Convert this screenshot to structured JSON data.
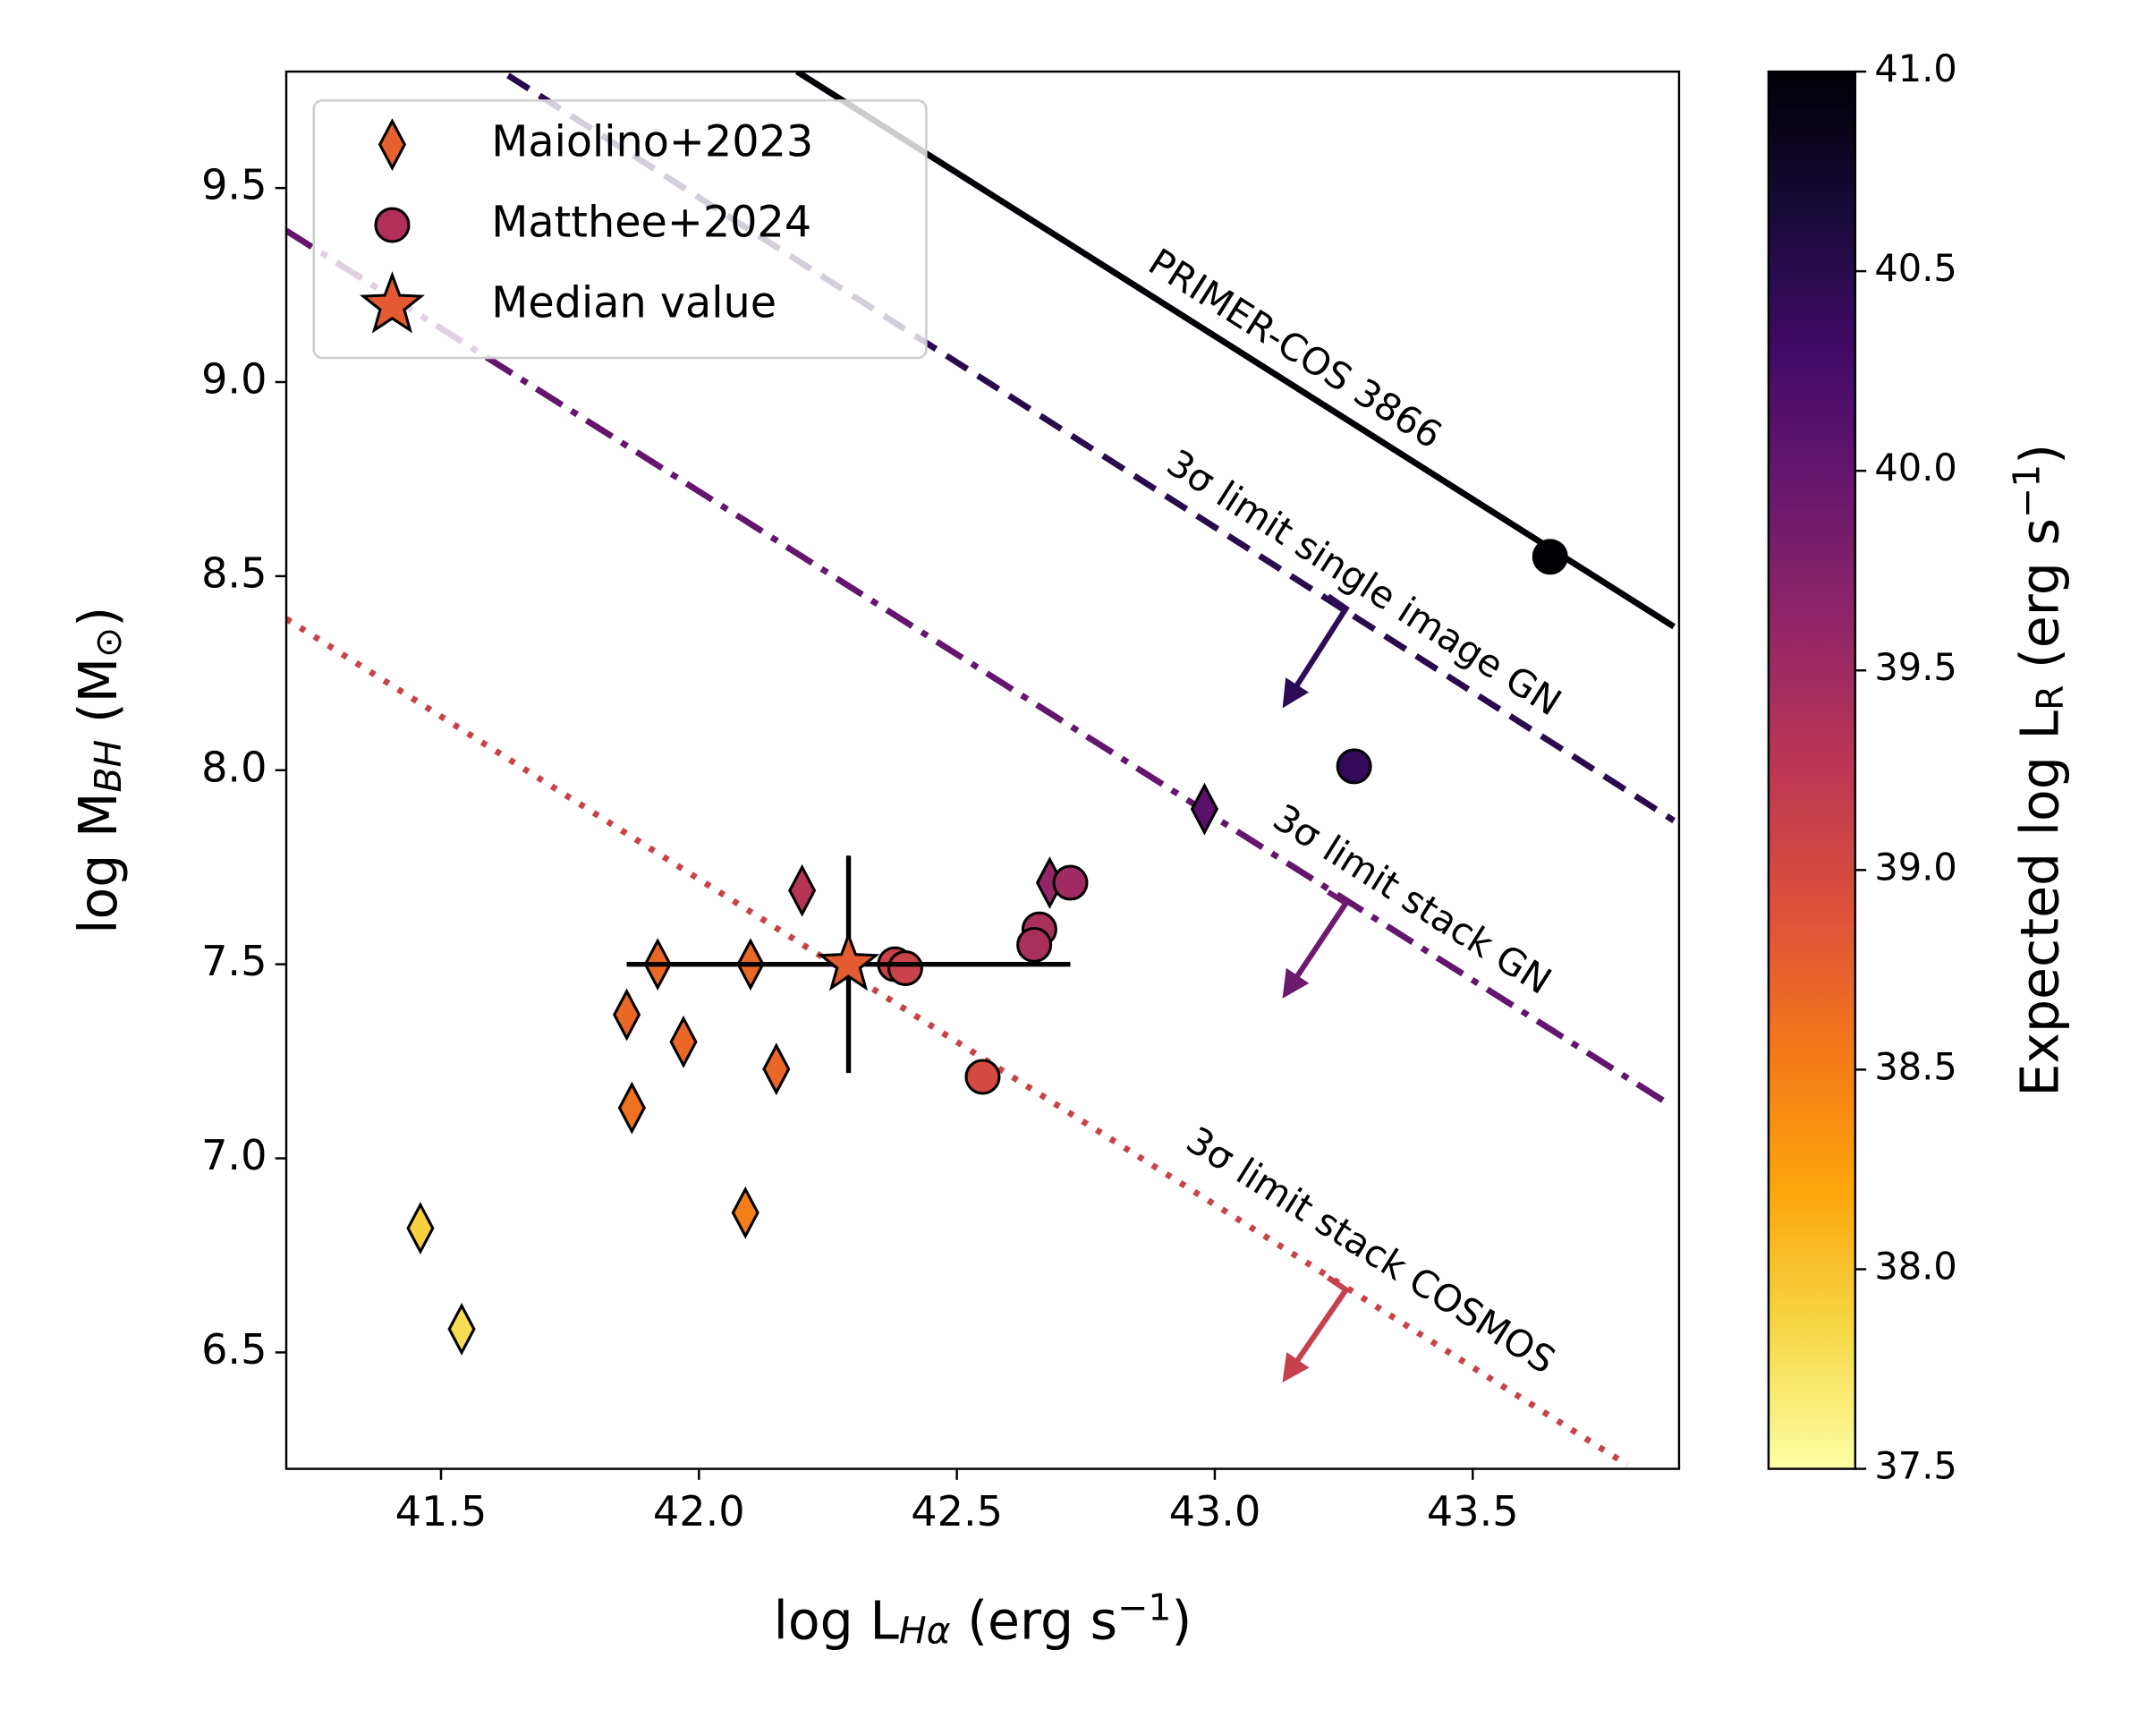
{
  "chart_data": {
    "type": "scatter",
    "xlabel": [
      {
        "t": "log L"
      },
      {
        "t": "Hα",
        "sub": true,
        "italic": true
      },
      {
        "t": " (erg s"
      },
      {
        "t": "−1",
        "sup": true
      },
      {
        "t": ")"
      }
    ],
    "ylabel": [
      {
        "t": "log M"
      },
      {
        "t": "BH",
        "sub": true,
        "italic": true
      },
      {
        "t": " (M"
      },
      {
        "t": "⊙",
        "sub": true
      },
      {
        "t": ")"
      }
    ],
    "xlim": [
      41.2,
      43.9
    ],
    "ylim": [
      6.2,
      9.8
    ],
    "xticks": [
      41.5,
      {
        "value": 42.0,
        "label": "42.0"
      },
      42.5,
      {
        "value": 43.0,
        "label": "43.0"
      },
      43.5
    ],
    "yticks": [
      6.5,
      {
        "value": 7.0,
        "label": "7.0"
      },
      7.5,
      {
        "value": 8.0,
        "label": "8.0"
      },
      8.5,
      {
        "value": 9.0,
        "label": "9.0"
      },
      9.5
    ],
    "colormap": "inferno_r",
    "colorbar": {
      "label": [
        {
          "t": "Expected log L"
        },
        {
          "t": "R",
          "sub": true
        },
        {
          "t": " (erg s"
        },
        {
          "t": "−1",
          "sup": true
        },
        {
          "t": ")"
        }
      ],
      "clim": [
        37.5,
        41.0
      ],
      "ticks": [
        37.5,
        {
          "value": 38.0,
          "label": "38.0"
        },
        38.5,
        {
          "value": 39.0,
          "label": "39.0"
        },
        39.5,
        {
          "value": 40.0,
          "label": "40.0"
        },
        40.5,
        {
          "value": 41.0,
          "label": "41.0"
        }
      ]
    },
    "legend": "upper left",
    "series": [
      {
        "name": "Maiolino+2023",
        "marker": "diamond",
        "color": "#e8602c",
        "x": [
          41.46,
          41.54,
          41.86,
          41.87,
          41.92,
          41.97,
          42.1,
          42.09,
          42.15,
          42.2,
          42.68,
          42.98
        ],
        "y": [
          6.82,
          6.56,
          7.37,
          7.13,
          7.5,
          7.3,
          7.5,
          6.86,
          7.23,
          7.69,
          7.71,
          7.9
        ],
        "c": [
          37.9,
          37.8,
          38.7,
          38.6,
          38.7,
          38.7,
          38.7,
          38.5,
          38.7,
          39.3,
          39.6,
          40.1
        ]
      },
      {
        "name": "Matthee+2024",
        "marker": "circle",
        "color": "#b0305a",
        "x": [
          43.65,
          43.27,
          42.72,
          42.66,
          42.65,
          42.38,
          42.4,
          42.55
        ],
        "y": [
          8.55,
          8.01,
          7.71,
          7.59,
          7.55,
          7.5,
          7.49,
          7.21
        ],
        "c": [
          41.0,
          40.4,
          39.5,
          39.4,
          39.4,
          39.1,
          39.1,
          39.0
        ]
      },
      {
        "name": "Median value",
        "marker": "star",
        "color": "#e35a32",
        "x": [
          42.29
        ],
        "y": [
          7.5
        ],
        "c": [
          38.8
        ],
        "xerr": [
          0.43
        ],
        "yerr": [
          0.28
        ]
      }
    ],
    "lines": [
      {
        "label": "PRIMER-COS 3866",
        "style": "solid",
        "c": 41.0,
        "x": [
          42.19,
          43.89
        ],
        "y": [
          9.8,
          8.37
        ]
      },
      {
        "label": "3σ limit single image GN",
        "style": "dashed",
        "c": 40.5,
        "x": [
          41.63,
          43.89
        ],
        "y": [
          9.79,
          7.87
        ]
      },
      {
        "label": "3σ limit stack GN",
        "style": "dashdot",
        "c": 40.0,
        "x": [
          41.2,
          43.88
        ],
        "y": [
          9.39,
          7.14
        ]
      },
      {
        "label": "3σ limit stack COSMOS",
        "style": "dotted",
        "c": 39.1,
        "x": [
          41.2,
          43.8
        ],
        "y": [
          8.39,
          6.21
        ]
      }
    ]
  }
}
